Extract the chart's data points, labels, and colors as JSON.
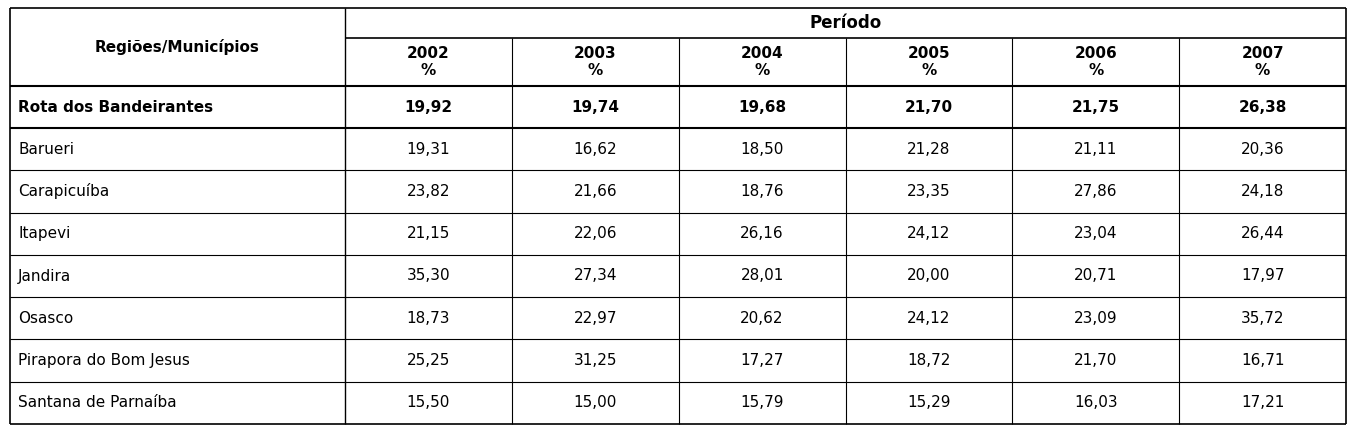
{
  "header_group": "Período",
  "col_header": "Regiões/Municípios",
  "years": [
    "2002\n%",
    "2003\n%",
    "2004\n%",
    "2005\n%",
    "2006\n%",
    "2007\n%"
  ],
  "bold_row": {
    "label": "Rota dos Bandeirantes",
    "values": [
      "19,92",
      "19,74",
      "19,68",
      "21,70",
      "21,75",
      "26,38"
    ]
  },
  "rows": [
    {
      "label": "Barueri",
      "values": [
        "19,31",
        "16,62",
        "18,50",
        "21,28",
        "21,11",
        "20,36"
      ]
    },
    {
      "label": "Carapicuíba",
      "values": [
        "23,82",
        "21,66",
        "18,76",
        "23,35",
        "27,86",
        "24,18"
      ]
    },
    {
      "label": "Itapevi",
      "values": [
        "21,15",
        "22,06",
        "26,16",
        "24,12",
        "23,04",
        "26,44"
      ]
    },
    {
      "label": "Jandira",
      "values": [
        "35,30",
        "27,34",
        "28,01",
        "20,00",
        "20,71",
        "17,97"
      ]
    },
    {
      "label": "Osasco",
      "values": [
        "18,73",
        "22,97",
        "20,62",
        "24,12",
        "23,09",
        "35,72"
      ]
    },
    {
      "label": "Pirapora do Bom Jesus",
      "values": [
        "25,25",
        "31,25",
        "17,27",
        "18,72",
        "21,70",
        "16,71"
      ]
    },
    {
      "label": "Santana de Parnaíba",
      "values": [
        "15,50",
        "15,00",
        "15,79",
        "15,29",
        "16,03",
        "17,21"
      ]
    }
  ],
  "background_color": "#ffffff",
  "line_color": "#000000",
  "font_color": "#000000",
  "figsize": [
    13.56,
    4.32
  ],
  "dpi": 100
}
